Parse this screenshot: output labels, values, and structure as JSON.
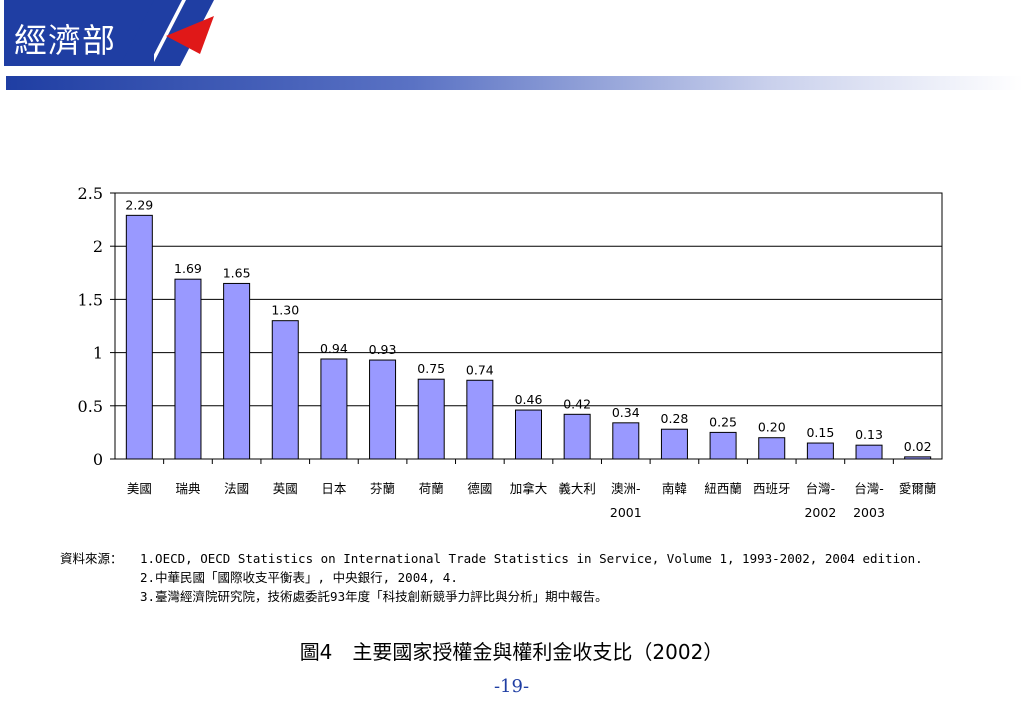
{
  "header": {
    "logo_text": "經濟部",
    "colors": {
      "navy": "#1f3ea3",
      "red": "#e01818"
    }
  },
  "chart_data": {
    "type": "bar",
    "categories": [
      [
        "美國"
      ],
      [
        "瑞典"
      ],
      [
        "法國"
      ],
      [
        "英國"
      ],
      [
        "日本"
      ],
      [
        "芬蘭"
      ],
      [
        "荷蘭"
      ],
      [
        "德國"
      ],
      [
        "加拿大"
      ],
      [
        "義大利"
      ],
      [
        "澳洲-",
        "2001"
      ],
      [
        "南韓"
      ],
      [
        "紐西蘭"
      ],
      [
        "西班牙"
      ],
      [
        "台灣-",
        "2002"
      ],
      [
        "台灣-",
        "2003"
      ],
      [
        "愛爾蘭"
      ]
    ],
    "values": [
      2.29,
      1.69,
      1.65,
      1.3,
      0.94,
      0.93,
      0.75,
      0.74,
      0.46,
      0.42,
      0.34,
      0.28,
      0.25,
      0.2,
      0.15,
      0.13,
      0.02
    ],
    "value_labels": [
      "2.29",
      "1.69",
      "1.65",
      "1.30",
      "0.94",
      "0.93",
      "0.75",
      "0.74",
      "0.46",
      "0.42",
      "0.34",
      "0.28",
      "0.25",
      "0.20",
      "0.15",
      "0.13",
      "0.02"
    ],
    "yticks": [
      "0",
      "0.5",
      "1",
      "1.5",
      "2",
      "2.5"
    ],
    "ylim": [
      0,
      2.5
    ],
    "grid": true,
    "bar_color": "#9999ff",
    "title": "",
    "xlabel": "",
    "ylabel": ""
  },
  "source": {
    "label": "資料來源：",
    "lines": [
      "1.OECD, OECD Statistics on International Trade Statistics in Service, Volume 1, 1993-2002, 2004 edition.",
      "2.中華民國「國際收支平衡表」, 中央銀行, 2004, 4.",
      "3.臺灣經濟院研究院，技術處委託93年度「科技創新競爭力評比與分析」期中報告。"
    ]
  },
  "caption": "圖4　主要國家授權金與權利金收支比（2002）",
  "page_number": "-19-"
}
